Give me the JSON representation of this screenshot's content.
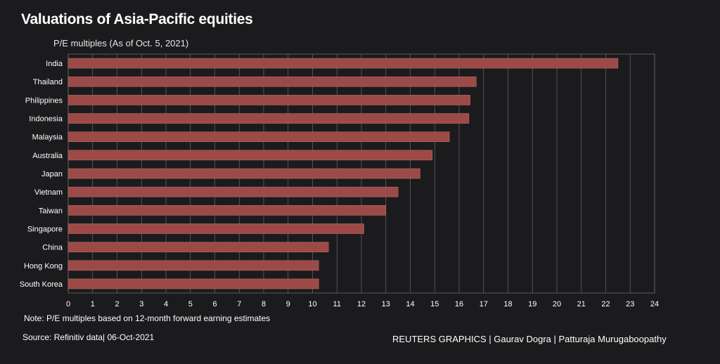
{
  "header": {
    "title": "Valuations of Asia-Pacific equities",
    "subtitle": "P/E multiples (As of Oct. 5, 2021)"
  },
  "footer": {
    "note": "Note: P/E multiples based on 12-month forward earning estimates",
    "source": "Source: Refinitiv data| 06-Oct-2021",
    "credit": "REUTERS GRAPHICS | Gaurav Dogra | Patturaja Murugaboopathy"
  },
  "colors": {
    "background": "#1b1b1d",
    "bar": "#9c4a48",
    "grid": "#6b6b6b",
    "text": "#ffffff"
  },
  "chart_data": {
    "type": "bar",
    "orientation": "horizontal",
    "title": "Valuations of Asia-Pacific equities",
    "subtitle": "P/E multiples (As of Oct. 5, 2021)",
    "xlabel": "",
    "ylabel": "",
    "categories": [
      "India",
      "Thailand",
      "Philippines",
      "Indonesia",
      "Malaysia",
      "Australia",
      "Japan",
      "Vietnam",
      "Taiwan",
      "Singapore",
      "China",
      "Hong Kong",
      "South Korea"
    ],
    "values": [
      22.5,
      16.7,
      16.45,
      16.4,
      15.6,
      14.9,
      14.4,
      13.5,
      13.0,
      12.1,
      10.65,
      10.25,
      10.25
    ],
    "xlim": [
      0,
      24
    ],
    "xticks": [
      0,
      1,
      2,
      3,
      4,
      5,
      6,
      7,
      8,
      9,
      10,
      11,
      12,
      13,
      14,
      15,
      16,
      17,
      18,
      19,
      20,
      21,
      22,
      23,
      24
    ],
    "grid": true
  }
}
